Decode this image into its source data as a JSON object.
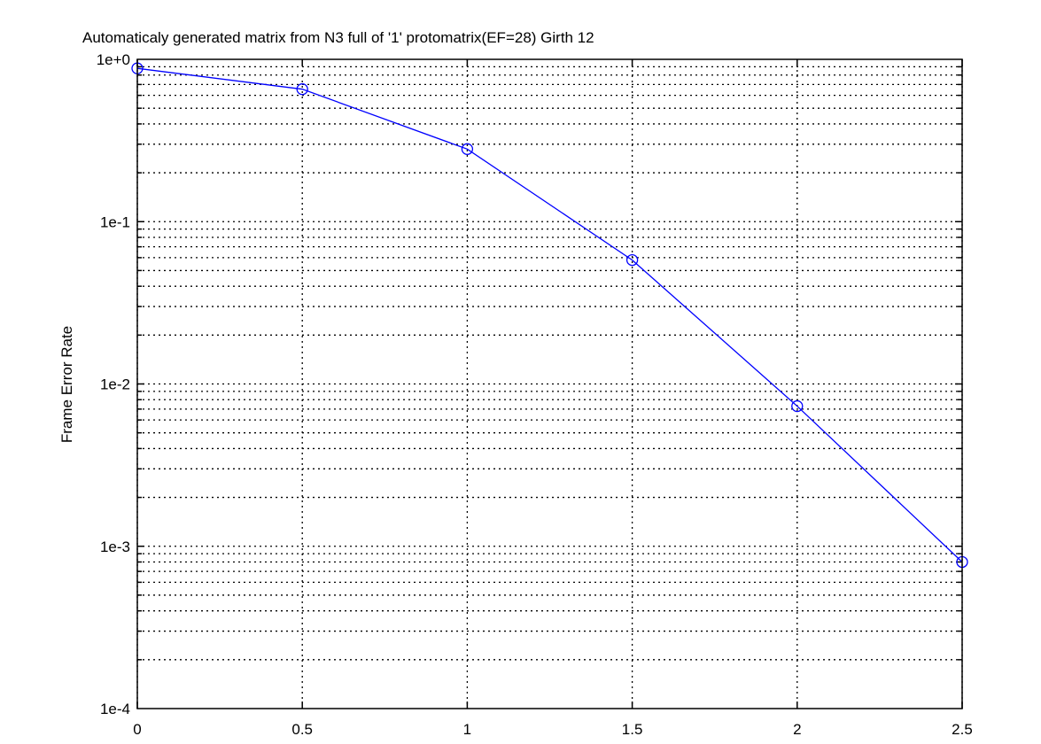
{
  "chart_data": {
    "type": "line",
    "title": "Automaticaly generated matrix from N3 full of '1' protomatrix(EF=28) Girth 12",
    "xlabel": "",
    "ylabel": "Frame Error Rate",
    "xlim": [
      0,
      2.5
    ],
    "ylim": [
      0.0001,
      1
    ],
    "yscale": "log",
    "grid": true,
    "xticks": [
      0,
      0.5,
      1,
      1.5,
      2,
      2.5
    ],
    "xtick_labels": [
      "0",
      "0.5",
      "1",
      "1.5",
      "2",
      "2.5"
    ],
    "yticks": [
      1,
      0.1,
      0.01,
      0.001,
      0.0001
    ],
    "ytick_labels": [
      "1e+0",
      "1e-1",
      "1e-2",
      "1e-3",
      "1e-4"
    ],
    "series": [
      {
        "color": "#0000ff",
        "marker": "circle",
        "x": [
          0,
          0.5,
          1,
          1.5,
          2,
          2.5
        ],
        "y": [
          0.88,
          0.655,
          0.28,
          0.058,
          0.0073,
          0.0008
        ]
      }
    ]
  }
}
